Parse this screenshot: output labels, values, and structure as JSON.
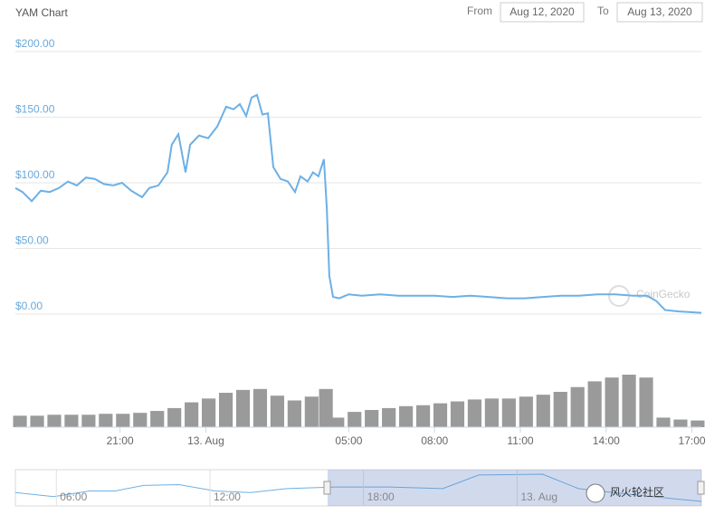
{
  "chart_data": {
    "type": "line",
    "title": "YAM Chart",
    "color": "#6cb0e6",
    "grid": true,
    "x": [
      17.34,
      17.59,
      17.91,
      18.23,
      18.54,
      18.86,
      19.18,
      19.49,
      19.81,
      20.12,
      20.44,
      20.76,
      21.07,
      21.39,
      21.77,
      22.02,
      22.34,
      22.66,
      22.81,
      23.04,
      23.29,
      23.45,
      23.76,
      24.08,
      24.4,
      24.71,
      24.97,
      25.19,
      25.41,
      25.6,
      25.79,
      25.98,
      26.17,
      26.36,
      26.61,
      26.87,
      27.12,
      27.31,
      27.56,
      27.75,
      27.94,
      28.13,
      28.23,
      28.32,
      28.45,
      28.67,
      28.99,
      29.46,
      30.09,
      30.73,
      31.36,
      31.99,
      32.63,
      33.26,
      33.89,
      34.52,
      35.16,
      35.79,
      36.42,
      37.06,
      37.69,
      38.32,
      38.95,
      39.43,
      39.75,
      40.06,
      40.54,
      41.33
    ],
    "values": [
      96,
      93,
      86,
      94,
      93,
      96,
      101,
      98,
      104,
      103,
      99,
      98,
      100,
      94,
      89,
      96,
      98,
      108,
      129,
      137,
      108,
      129,
      136,
      134,
      143,
      158,
      156,
      160,
      151,
      165,
      167,
      152,
      153,
      112,
      103,
      101,
      93,
      105,
      101,
      108,
      105,
      118,
      81,
      29,
      13,
      12,
      15,
      14,
      15,
      14,
      14,
      14,
      13,
      14,
      13,
      12,
      12,
      13,
      14,
      14,
      15,
      15,
      14,
      14,
      10,
      3,
      2,
      1
    ],
    "xlim": [
      17.34,
      41.33
    ],
    "xticks": [
      {
        "value": 21,
        "label": "21:00"
      },
      {
        "value": 24,
        "label": "13. Aug"
      },
      {
        "value": 29,
        "label": "05:00"
      },
      {
        "value": 32,
        "label": "08:00"
      },
      {
        "value": 35,
        "label": "11:00"
      },
      {
        "value": 38,
        "label": "14:00"
      },
      {
        "value": 41,
        "label": "17:00"
      }
    ],
    "ylim": [
      0,
      200
    ],
    "yticks": [
      {
        "value": 0,
        "label": "$0.00"
      },
      {
        "value": 50,
        "label": "$50.00"
      },
      {
        "value": 100,
        "label": "$100.00"
      },
      {
        "value": 150,
        "label": "$150.00"
      },
      {
        "value": 200,
        "label": "$200.00"
      }
    ],
    "volume": {
      "type": "bar",
      "color": "#9a9a9a",
      "x": [
        17.5,
        18.1,
        18.7,
        19.3,
        19.9,
        20.5,
        21.1,
        21.7,
        22.3,
        22.9,
        23.5,
        24.1,
        24.7,
        25.3,
        25.9,
        26.5,
        27.1,
        27.7,
        28.2,
        28.6,
        29.2,
        29.8,
        30.4,
        31.0,
        31.6,
        32.2,
        32.8,
        33.4,
        34.0,
        34.6,
        35.2,
        35.8,
        36.4,
        37.0,
        37.6,
        38.2,
        38.8,
        39.4,
        40.0,
        40.6,
        41.2
      ],
      "values": [
        12,
        12,
        13,
        13,
        13,
        14,
        14,
        15,
        17,
        20,
        26,
        30,
        36,
        39,
        40,
        33,
        28,
        32,
        40,
        10,
        16,
        18,
        20,
        22,
        23,
        25,
        27,
        29,
        30,
        30,
        32,
        34,
        37,
        42,
        48,
        52,
        55,
        52,
        10,
        8,
        7
      ]
    },
    "navigator": {
      "type": "line",
      "color": "#6cb0e6",
      "x": [
        4.4,
        5.9,
        7.3,
        8.3,
        9.4,
        10.8,
        12.2,
        13.6,
        15.0,
        16.9,
        19.0,
        21.1,
        22.5,
        25.0,
        26.4,
        28.6,
        31.2
      ],
      "values": [
        45,
        40,
        47,
        47,
        54,
        55,
        47,
        45,
        50,
        52,
        52,
        50,
        67,
        68,
        50,
        42,
        34
      ],
      "xlim": [
        4.4,
        31.2
      ],
      "xticks": [
        {
          "value": 6,
          "label": "06:00"
        },
        {
          "value": 12,
          "label": "12:00"
        },
        {
          "value": 18,
          "label": "18:00"
        },
        {
          "value": 24,
          "label": "13. Aug"
        }
      ]
    }
  },
  "controls": {
    "from_label": "From",
    "from": "Aug 12, 2020",
    "to_label": "To",
    "to": "Aug 13, 2020"
  },
  "watermarks": [
    "CoinGecko",
    "风火轮社区"
  ]
}
